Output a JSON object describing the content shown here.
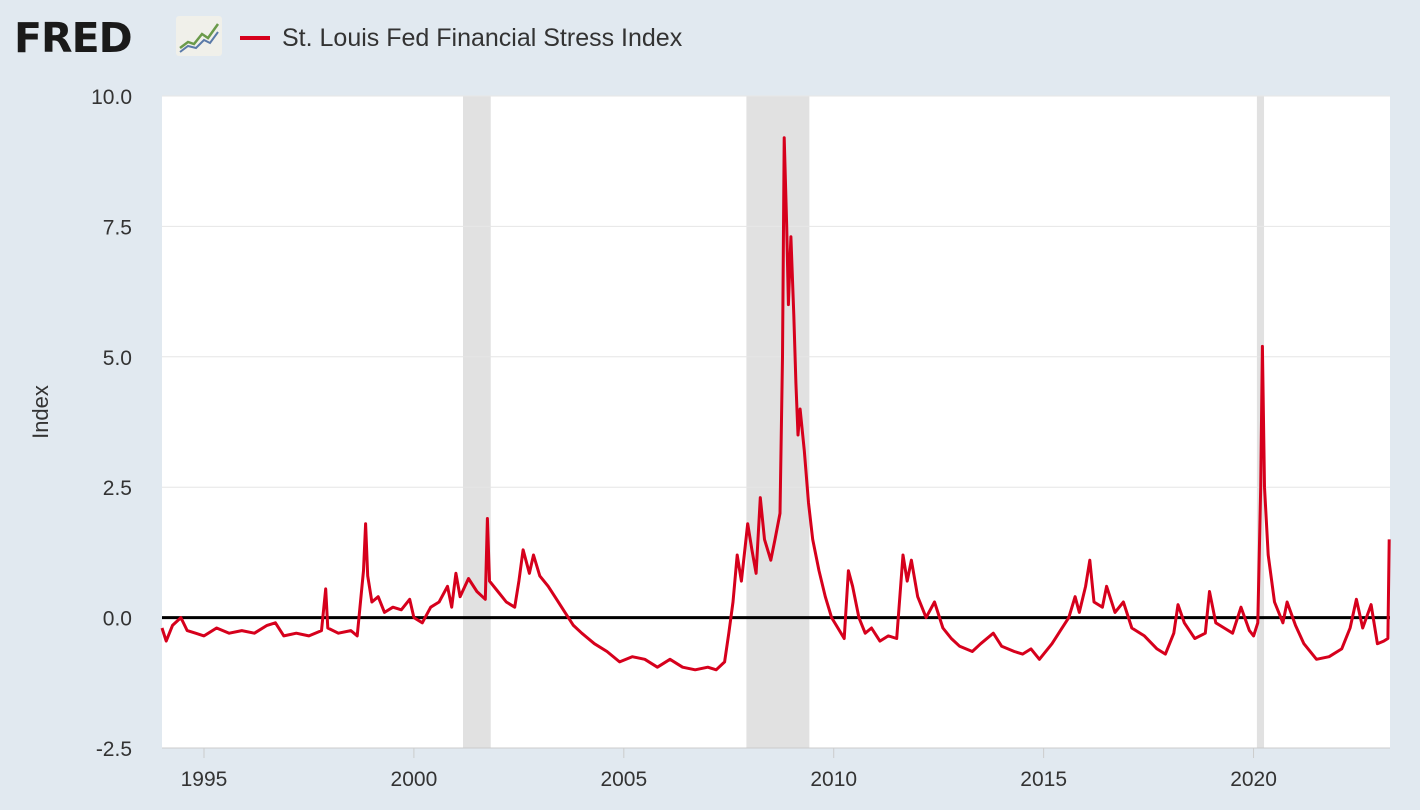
{
  "header": {
    "logo_text": "FRED",
    "logo_mark": "fred-line-chart-logo-icon"
  },
  "colors": {
    "page_background": "#e1e9f0",
    "plot_background": "#ffffff",
    "series": "#d6001c",
    "recession": "#e1e1e1",
    "zero_line": "#000000"
  },
  "chart_data": {
    "type": "line",
    "title": "",
    "xlabel": "",
    "ylabel": "Index",
    "ylim": [
      -2.5,
      10.0
    ],
    "xlim": [
      1994.0,
      2023.25
    ],
    "grid": true,
    "legend": "top-left",
    "y_ticks": [
      "10.0",
      "7.5",
      "5.0",
      "2.5",
      "0.0",
      "-2.5"
    ],
    "x_ticks": [
      "1995",
      "2000",
      "2005",
      "2010",
      "2015",
      "2020"
    ],
    "recessions": [
      [
        2001.17,
        2001.83
      ],
      [
        2007.92,
        2009.42
      ],
      [
        2020.08,
        2020.25
      ]
    ],
    "series": [
      {
        "name": "St. Louis Fed Financial Stress Index",
        "points": [
          [
            1994.0,
            -0.2
          ],
          [
            1994.1,
            -0.45
          ],
          [
            1994.25,
            -0.15
          ],
          [
            1994.45,
            0.0
          ],
          [
            1994.6,
            -0.25
          ],
          [
            1994.8,
            -0.3
          ],
          [
            1995.0,
            -0.35
          ],
          [
            1995.3,
            -0.2
          ],
          [
            1995.6,
            -0.3
          ],
          [
            1995.9,
            -0.25
          ],
          [
            1996.2,
            -0.3
          ],
          [
            1996.5,
            -0.15
          ],
          [
            1996.7,
            -0.1
          ],
          [
            1996.9,
            -0.35
          ],
          [
            1997.2,
            -0.3
          ],
          [
            1997.5,
            -0.35
          ],
          [
            1997.8,
            -0.25
          ],
          [
            1997.9,
            0.55
          ],
          [
            1997.95,
            -0.2
          ],
          [
            1998.2,
            -0.3
          ],
          [
            1998.5,
            -0.25
          ],
          [
            1998.65,
            -0.35
          ],
          [
            1998.8,
            0.9
          ],
          [
            1998.85,
            1.8
          ],
          [
            1998.9,
            0.8
          ],
          [
            1999.0,
            0.3
          ],
          [
            1999.15,
            0.4
          ],
          [
            1999.3,
            0.1
          ],
          [
            1999.5,
            0.2
          ],
          [
            1999.7,
            0.15
          ],
          [
            1999.9,
            0.35
          ],
          [
            2000.0,
            0.0
          ],
          [
            2000.2,
            -0.1
          ],
          [
            2000.4,
            0.2
          ],
          [
            2000.6,
            0.3
          ],
          [
            2000.8,
            0.6
          ],
          [
            2000.9,
            0.2
          ],
          [
            2001.0,
            0.85
          ],
          [
            2001.1,
            0.4
          ],
          [
            2001.3,
            0.75
          ],
          [
            2001.5,
            0.5
          ],
          [
            2001.7,
            0.35
          ],
          [
            2001.75,
            1.9
          ],
          [
            2001.8,
            0.7
          ],
          [
            2002.0,
            0.5
          ],
          [
            2002.2,
            0.3
          ],
          [
            2002.4,
            0.2
          ],
          [
            2002.5,
            0.7
          ],
          [
            2002.6,
            1.3
          ],
          [
            2002.75,
            0.85
          ],
          [
            2002.85,
            1.2
          ],
          [
            2003.0,
            0.8
          ],
          [
            2003.2,
            0.6
          ],
          [
            2003.4,
            0.35
          ],
          [
            2003.6,
            0.1
          ],
          [
            2003.8,
            -0.15
          ],
          [
            2004.0,
            -0.3
          ],
          [
            2004.3,
            -0.5
          ],
          [
            2004.6,
            -0.65
          ],
          [
            2004.9,
            -0.85
          ],
          [
            2005.2,
            -0.75
          ],
          [
            2005.5,
            -0.8
          ],
          [
            2005.8,
            -0.95
          ],
          [
            2006.1,
            -0.8
          ],
          [
            2006.4,
            -0.95
          ],
          [
            2006.7,
            -1.0
          ],
          [
            2007.0,
            -0.95
          ],
          [
            2007.2,
            -1.0
          ],
          [
            2007.4,
            -0.85
          ],
          [
            2007.5,
            -0.3
          ],
          [
            2007.6,
            0.3
          ],
          [
            2007.7,
            1.2
          ],
          [
            2007.8,
            0.7
          ],
          [
            2007.95,
            1.8
          ],
          [
            2008.05,
            1.3
          ],
          [
            2008.15,
            0.85
          ],
          [
            2008.25,
            2.3
          ],
          [
            2008.35,
            1.5
          ],
          [
            2008.5,
            1.1
          ],
          [
            2008.6,
            1.5
          ],
          [
            2008.72,
            2.0
          ],
          [
            2008.78,
            5.0
          ],
          [
            2008.82,
            9.2
          ],
          [
            2008.88,
            7.5
          ],
          [
            2008.92,
            6.0
          ],
          [
            2008.98,
            7.3
          ],
          [
            2009.05,
            5.8
          ],
          [
            2009.1,
            4.5
          ],
          [
            2009.15,
            3.5
          ],
          [
            2009.2,
            4.0
          ],
          [
            2009.3,
            3.2
          ],
          [
            2009.4,
            2.2
          ],
          [
            2009.5,
            1.5
          ],
          [
            2009.65,
            0.9
          ],
          [
            2009.8,
            0.4
          ],
          [
            2009.95,
            0.0
          ],
          [
            2010.1,
            -0.2
          ],
          [
            2010.25,
            -0.4
          ],
          [
            2010.35,
            0.9
          ],
          [
            2010.45,
            0.6
          ],
          [
            2010.6,
            0.0
          ],
          [
            2010.75,
            -0.3
          ],
          [
            2010.9,
            -0.2
          ],
          [
            2011.1,
            -0.45
          ],
          [
            2011.3,
            -0.35
          ],
          [
            2011.5,
            -0.4
          ],
          [
            2011.65,
            1.2
          ],
          [
            2011.75,
            0.7
          ],
          [
            2011.85,
            1.1
          ],
          [
            2012.0,
            0.4
          ],
          [
            2012.2,
            0.0
          ],
          [
            2012.4,
            0.3
          ],
          [
            2012.6,
            -0.2
          ],
          [
            2012.8,
            -0.4
          ],
          [
            2013.0,
            -0.55
          ],
          [
            2013.3,
            -0.65
          ],
          [
            2013.5,
            -0.5
          ],
          [
            2013.8,
            -0.3
          ],
          [
            2014.0,
            -0.55
          ],
          [
            2014.3,
            -0.65
          ],
          [
            2014.5,
            -0.7
          ],
          [
            2014.7,
            -0.6
          ],
          [
            2014.9,
            -0.8
          ],
          [
            2015.2,
            -0.5
          ],
          [
            2015.4,
            -0.25
          ],
          [
            2015.6,
            0.0
          ],
          [
            2015.75,
            0.4
          ],
          [
            2015.85,
            0.1
          ],
          [
            2016.0,
            0.6
          ],
          [
            2016.1,
            1.1
          ],
          [
            2016.2,
            0.3
          ],
          [
            2016.4,
            0.2
          ],
          [
            2016.5,
            0.6
          ],
          [
            2016.7,
            0.1
          ],
          [
            2016.9,
            0.3
          ],
          [
            2017.1,
            -0.2
          ],
          [
            2017.4,
            -0.35
          ],
          [
            2017.7,
            -0.6
          ],
          [
            2017.9,
            -0.7
          ],
          [
            2018.1,
            -0.3
          ],
          [
            2018.2,
            0.25
          ],
          [
            2018.35,
            -0.1
          ],
          [
            2018.6,
            -0.4
          ],
          [
            2018.85,
            -0.3
          ],
          [
            2018.95,
            0.5
          ],
          [
            2019.1,
            -0.1
          ],
          [
            2019.3,
            -0.2
          ],
          [
            2019.5,
            -0.3
          ],
          [
            2019.7,
            0.2
          ],
          [
            2019.9,
            -0.25
          ],
          [
            2020.0,
            -0.35
          ],
          [
            2020.1,
            -0.1
          ],
          [
            2020.17,
            2.5
          ],
          [
            2020.21,
            5.2
          ],
          [
            2020.26,
            2.5
          ],
          [
            2020.35,
            1.2
          ],
          [
            2020.5,
            0.3
          ],
          [
            2020.7,
            -0.1
          ],
          [
            2020.8,
            0.3
          ],
          [
            2021.0,
            -0.15
          ],
          [
            2021.2,
            -0.5
          ],
          [
            2021.5,
            -0.8
          ],
          [
            2021.8,
            -0.75
          ],
          [
            2022.1,
            -0.6
          ],
          [
            2022.3,
            -0.2
          ],
          [
            2022.45,
            0.35
          ],
          [
            2022.6,
            -0.2
          ],
          [
            2022.8,
            0.25
          ],
          [
            2022.95,
            -0.5
          ],
          [
            2023.1,
            -0.45
          ],
          [
            2023.2,
            -0.4
          ],
          [
            2023.23,
            1.5
          ]
        ]
      }
    ]
  }
}
